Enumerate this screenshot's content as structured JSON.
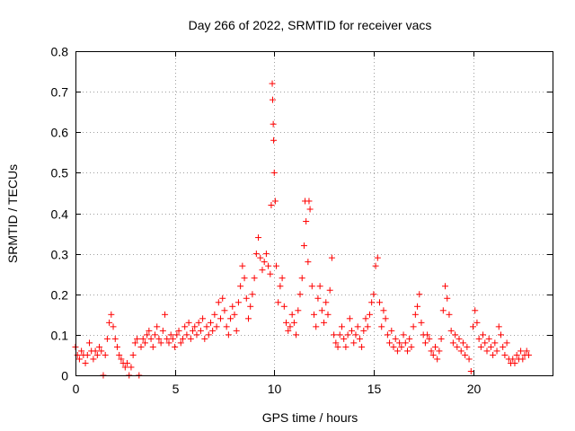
{
  "chart_data": {
    "type": "scatter",
    "title": "Day 266 of 2022, SRMTID for receiver vacs",
    "xlabel": "GPS time / hours",
    "ylabel": "SRMTID / TECUs",
    "xlim": [
      0,
      24
    ],
    "ylim": [
      0,
      0.8
    ],
    "x_ticks": [
      0,
      5,
      10,
      15,
      20
    ],
    "y_ticks": [
      0,
      0.1,
      0.2,
      0.3,
      0.4,
      0.5,
      0.6,
      0.7,
      0.8
    ],
    "x_tick_labels": [
      "0",
      "5",
      "10",
      "15",
      "20"
    ],
    "y_tick_labels": [
      "0",
      "0.1",
      "0.2",
      "0.3",
      "0.4",
      "0.5",
      "0.6",
      "0.7",
      "0.8"
    ],
    "grid": true,
    "marker": "+",
    "color": "#ff0000",
    "series": [
      {
        "name": "SRMTID",
        "points": [
          [
            0.0,
            0.07
          ],
          [
            0.1,
            0.05
          ],
          [
            0.2,
            0.04
          ],
          [
            0.3,
            0.06
          ],
          [
            0.4,
            0.05
          ],
          [
            0.5,
            0.03
          ],
          [
            0.6,
            0.05
          ],
          [
            0.7,
            0.08
          ],
          [
            0.8,
            0.06
          ],
          [
            0.9,
            0.04
          ],
          [
            1.0,
            0.06
          ],
          [
            1.1,
            0.05
          ],
          [
            1.2,
            0.07
          ],
          [
            1.3,
            0.06
          ],
          [
            1.4,
            0.0
          ],
          [
            1.5,
            0.05
          ],
          [
            1.6,
            0.09
          ],
          [
            1.7,
            0.13
          ],
          [
            1.8,
            0.15
          ],
          [
            1.9,
            0.12
          ],
          [
            2.0,
            0.09
          ],
          [
            2.1,
            0.07
          ],
          [
            2.2,
            0.05
          ],
          [
            2.3,
            0.04
          ],
          [
            2.4,
            0.03
          ],
          [
            2.5,
            0.02
          ],
          [
            2.6,
            0.03
          ],
          [
            2.7,
            0.0
          ],
          [
            2.8,
            0.02
          ],
          [
            2.9,
            0.05
          ],
          [
            3.0,
            0.08
          ],
          [
            3.1,
            0.09
          ],
          [
            3.2,
            0.0
          ],
          [
            3.3,
            0.07
          ],
          [
            3.4,
            0.09
          ],
          [
            3.5,
            0.08
          ],
          [
            3.6,
            0.1
          ],
          [
            3.7,
            0.11
          ],
          [
            3.8,
            0.09
          ],
          [
            3.9,
            0.07
          ],
          [
            4.0,
            0.1
          ],
          [
            4.1,
            0.12
          ],
          [
            4.2,
            0.09
          ],
          [
            4.3,
            0.08
          ],
          [
            4.4,
            0.11
          ],
          [
            4.5,
            0.15
          ],
          [
            4.6,
            0.09
          ],
          [
            4.7,
            0.08
          ],
          [
            4.8,
            0.1
          ],
          [
            4.9,
            0.09
          ],
          [
            5.0,
            0.07
          ],
          [
            5.1,
            0.1
          ],
          [
            5.2,
            0.11
          ],
          [
            5.3,
            0.08
          ],
          [
            5.4,
            0.09
          ],
          [
            5.5,
            0.12
          ],
          [
            5.6,
            0.1
          ],
          [
            5.7,
            0.13
          ],
          [
            5.8,
            0.09
          ],
          [
            5.9,
            0.11
          ],
          [
            6.0,
            0.12
          ],
          [
            6.1,
            0.1
          ],
          [
            6.2,
            0.13
          ],
          [
            6.3,
            0.11
          ],
          [
            6.4,
            0.14
          ],
          [
            6.5,
            0.09
          ],
          [
            6.6,
            0.12
          ],
          [
            6.7,
            0.1
          ],
          [
            6.8,
            0.13
          ],
          [
            6.9,
            0.11
          ],
          [
            7.0,
            0.15
          ],
          [
            7.1,
            0.12
          ],
          [
            7.2,
            0.18
          ],
          [
            7.3,
            0.14
          ],
          [
            7.4,
            0.19
          ],
          [
            7.5,
            0.16
          ],
          [
            7.6,
            0.12
          ],
          [
            7.7,
            0.1
          ],
          [
            7.8,
            0.14
          ],
          [
            7.9,
            0.17
          ],
          [
            8.0,
            0.15
          ],
          [
            8.1,
            0.11
          ],
          [
            8.2,
            0.18
          ],
          [
            8.3,
            0.22
          ],
          [
            8.4,
            0.27
          ],
          [
            8.5,
            0.24
          ],
          [
            8.6,
            0.19
          ],
          [
            8.7,
            0.14
          ],
          [
            8.8,
            0.17
          ],
          [
            8.9,
            0.2
          ],
          [
            9.0,
            0.24
          ],
          [
            9.1,
            0.3
          ],
          [
            9.2,
            0.34
          ],
          [
            9.3,
            0.29
          ],
          [
            9.4,
            0.26
          ],
          [
            9.5,
            0.28
          ],
          [
            9.6,
            0.3
          ],
          [
            9.7,
            0.27
          ],
          [
            9.8,
            0.25
          ],
          [
            9.85,
            0.42
          ],
          [
            9.9,
            0.72
          ],
          [
            9.92,
            0.68
          ],
          [
            9.95,
            0.62
          ],
          [
            9.97,
            0.58
          ],
          [
            10.0,
            0.5
          ],
          [
            10.05,
            0.43
          ],
          [
            10.1,
            0.27
          ],
          [
            10.2,
            0.18
          ],
          [
            10.3,
            0.22
          ],
          [
            10.4,
            0.24
          ],
          [
            10.5,
            0.17
          ],
          [
            10.6,
            0.13
          ],
          [
            10.7,
            0.11
          ],
          [
            10.8,
            0.12
          ],
          [
            10.9,
            0.15
          ],
          [
            11.0,
            0.13
          ],
          [
            11.1,
            0.1
          ],
          [
            11.2,
            0.16
          ],
          [
            11.3,
            0.2
          ],
          [
            11.4,
            0.24
          ],
          [
            11.5,
            0.32
          ],
          [
            11.55,
            0.43
          ],
          [
            11.6,
            0.38
          ],
          [
            11.7,
            0.28
          ],
          [
            11.75,
            0.43
          ],
          [
            11.8,
            0.41
          ],
          [
            11.9,
            0.22
          ],
          [
            12.0,
            0.15
          ],
          [
            12.1,
            0.12
          ],
          [
            12.2,
            0.19
          ],
          [
            12.3,
            0.22
          ],
          [
            12.4,
            0.16
          ],
          [
            12.5,
            0.13
          ],
          [
            12.6,
            0.18
          ],
          [
            12.7,
            0.15
          ],
          [
            12.8,
            0.21
          ],
          [
            12.9,
            0.29
          ],
          [
            13.0,
            0.1
          ],
          [
            13.1,
            0.08
          ],
          [
            13.2,
            0.07
          ],
          [
            13.3,
            0.1
          ],
          [
            13.4,
            0.12
          ],
          [
            13.5,
            0.09
          ],
          [
            13.6,
            0.07
          ],
          [
            13.7,
            0.1
          ],
          [
            13.8,
            0.14
          ],
          [
            13.9,
            0.11
          ],
          [
            14.0,
            0.08
          ],
          [
            14.1,
            0.1
          ],
          [
            14.2,
            0.12
          ],
          [
            14.3,
            0.09
          ],
          [
            14.4,
            0.07
          ],
          [
            14.5,
            0.11
          ],
          [
            14.6,
            0.14
          ],
          [
            14.7,
            0.12
          ],
          [
            14.8,
            0.15
          ],
          [
            14.9,
            0.18
          ],
          [
            15.0,
            0.2
          ],
          [
            15.1,
            0.27
          ],
          [
            15.2,
            0.29
          ],
          [
            15.3,
            0.18
          ],
          [
            15.4,
            0.12
          ],
          [
            15.5,
            0.16
          ],
          [
            15.6,
            0.14
          ],
          [
            15.7,
            0.1
          ],
          [
            15.8,
            0.08
          ],
          [
            15.9,
            0.11
          ],
          [
            16.0,
            0.07
          ],
          [
            16.1,
            0.09
          ],
          [
            16.2,
            0.06
          ],
          [
            16.3,
            0.08
          ],
          [
            16.4,
            0.07
          ],
          [
            16.5,
            0.1
          ],
          [
            16.6,
            0.08
          ],
          [
            16.7,
            0.06
          ],
          [
            16.8,
            0.09
          ],
          [
            16.9,
            0.07
          ],
          [
            17.0,
            0.12
          ],
          [
            17.1,
            0.15
          ],
          [
            17.2,
            0.17
          ],
          [
            17.3,
            0.2
          ],
          [
            17.4,
            0.13
          ],
          [
            17.5,
            0.1
          ],
          [
            17.6,
            0.08
          ],
          [
            17.7,
            0.1
          ],
          [
            17.8,
            0.09
          ],
          [
            17.9,
            0.06
          ],
          [
            18.0,
            0.05
          ],
          [
            18.1,
            0.07
          ],
          [
            18.2,
            0.04
          ],
          [
            18.3,
            0.06
          ],
          [
            18.4,
            0.09
          ],
          [
            18.5,
            0.16
          ],
          [
            18.6,
            0.22
          ],
          [
            18.7,
            0.19
          ],
          [
            18.8,
            0.15
          ],
          [
            18.9,
            0.11
          ],
          [
            19.0,
            0.08
          ],
          [
            19.1,
            0.1
          ],
          [
            19.2,
            0.07
          ],
          [
            19.3,
            0.09
          ],
          [
            19.4,
            0.06
          ],
          [
            19.5,
            0.08
          ],
          [
            19.6,
            0.05
          ],
          [
            19.7,
            0.07
          ],
          [
            19.8,
            0.04
          ],
          [
            19.9,
            0.01
          ],
          [
            20.0,
            0.12
          ],
          [
            20.1,
            0.16
          ],
          [
            20.2,
            0.13
          ],
          [
            20.3,
            0.09
          ],
          [
            20.4,
            0.07
          ],
          [
            20.5,
            0.1
          ],
          [
            20.6,
            0.08
          ],
          [
            20.7,
            0.06
          ],
          [
            20.8,
            0.09
          ],
          [
            20.9,
            0.07
          ],
          [
            21.0,
            0.05
          ],
          [
            21.1,
            0.08
          ],
          [
            21.2,
            0.06
          ],
          [
            21.3,
            0.12
          ],
          [
            21.4,
            0.1
          ],
          [
            21.5,
            0.07
          ],
          [
            21.6,
            0.05
          ],
          [
            21.7,
            0.08
          ],
          [
            21.8,
            0.04
          ],
          [
            21.9,
            0.03
          ],
          [
            22.0,
            0.04
          ],
          [
            22.1,
            0.03
          ],
          [
            22.2,
            0.05
          ],
          [
            22.3,
            0.04
          ],
          [
            22.4,
            0.06
          ],
          [
            22.5,
            0.04
          ],
          [
            22.6,
            0.05
          ],
          [
            22.7,
            0.06
          ],
          [
            22.8,
            0.05
          ]
        ]
      }
    ]
  }
}
